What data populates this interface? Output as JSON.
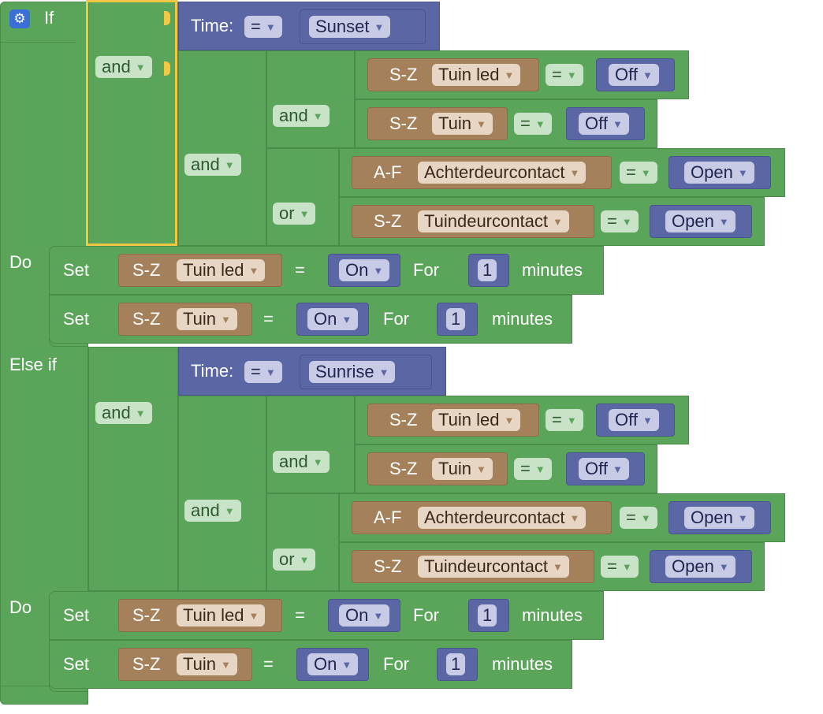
{
  "labels": {
    "if": "If",
    "do": "Do",
    "else_if": "Else if",
    "time": "Time:",
    "set": "Set",
    "for": "For",
    "minutes": "minutes",
    "eq": "="
  },
  "icons": {
    "settings": "gear-icon",
    "dropdown": "chevron-down-icon"
  },
  "colors": {
    "logic": "#5ba55b",
    "value": "#5b67a5",
    "device": "#a5815b",
    "selection": "#f2c744",
    "settings_icon": "#3a6fd8"
  },
  "sections": [
    {
      "time_value": "Sunset",
      "outer_op": "and",
      "mid_op": "and",
      "inner_and_op": "and",
      "inner_or_op": "or",
      "conditions": [
        {
          "type": "S-Z",
          "device": "Tuin led",
          "op": "=",
          "value": "Off"
        },
        {
          "type": "S-Z",
          "device": "Tuin",
          "op": "=",
          "value": "Off"
        },
        {
          "type": "A-F",
          "device": "Achterdeurcontact",
          "op": "=",
          "value": "Open"
        },
        {
          "type": "S-Z",
          "device": "Tuindeurcontact",
          "op": "=",
          "value": "Open"
        }
      ],
      "actions": [
        {
          "type": "S-Z",
          "device": "Tuin led",
          "value": "On",
          "duration": "1"
        },
        {
          "type": "S-Z",
          "device": "Tuin",
          "value": "On",
          "duration": "1"
        }
      ]
    },
    {
      "time_value": "Sunrise",
      "outer_op": "and",
      "mid_op": "and",
      "inner_and_op": "and",
      "inner_or_op": "or",
      "conditions": [
        {
          "type": "S-Z",
          "device": "Tuin led",
          "op": "=",
          "value": "Off"
        },
        {
          "type": "S-Z",
          "device": "Tuin",
          "op": "=",
          "value": "Off"
        },
        {
          "type": "A-F",
          "device": "Achterdeurcontact",
          "op": "=",
          "value": "Open"
        },
        {
          "type": "S-Z",
          "device": "Tuindeurcontact",
          "op": "=",
          "value": "Open"
        }
      ],
      "actions": [
        {
          "type": "S-Z",
          "device": "Tuin led",
          "value": "On",
          "duration": "1"
        },
        {
          "type": "S-Z",
          "device": "Tuin",
          "value": "On",
          "duration": "1"
        }
      ]
    }
  ]
}
